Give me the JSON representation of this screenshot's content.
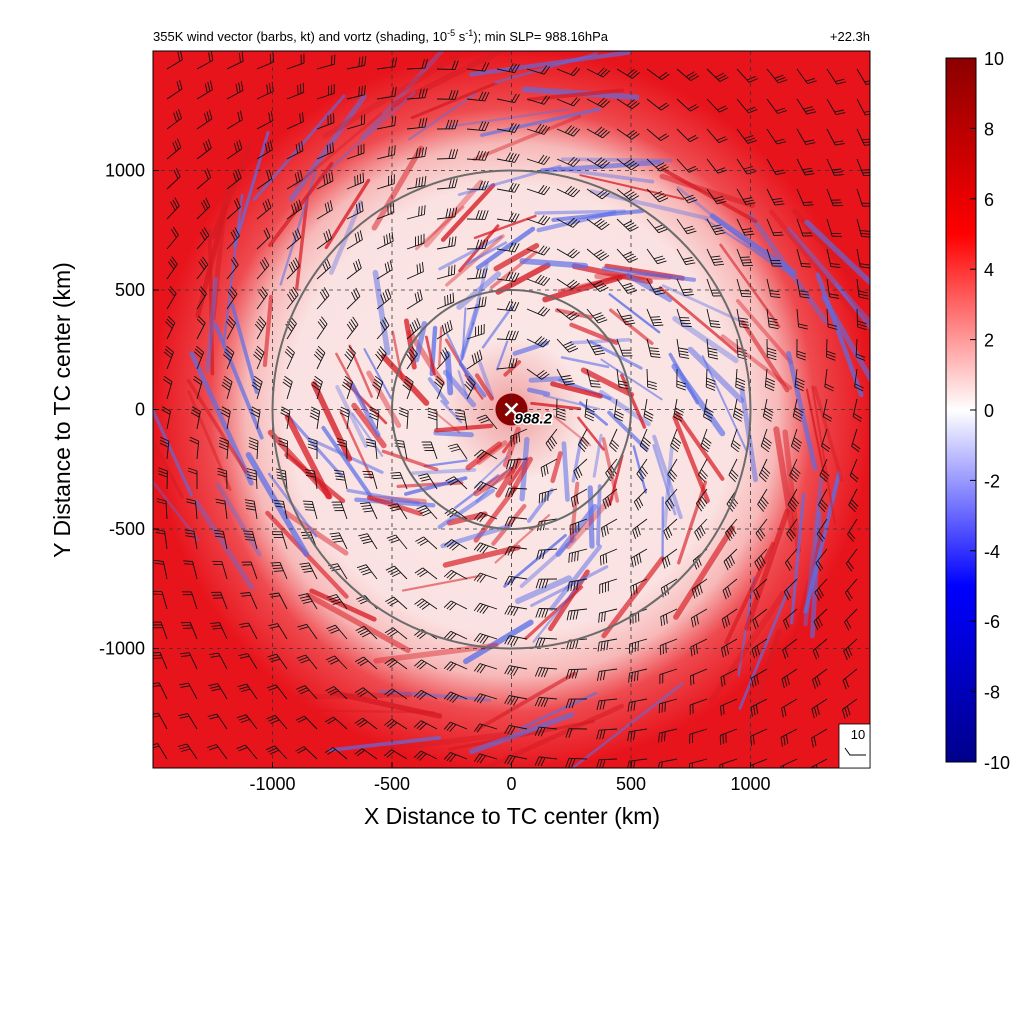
{
  "chart_data": {
    "type": "heatmap",
    "title_main": "355K wind vector (barbs, kt) and vortz (shading, 10",
    "title_exp": "-5",
    "title_mid": " s",
    "title_exp2": "-1",
    "title_tail": "); min SLP= 988.16hPa",
    "time_label": "+22.3h",
    "xlabel": "X Distance to TC center (km)",
    "ylabel": "Y Distance to TC center (km)",
    "xlim": [
      -1500,
      1500
    ],
    "ylim": [
      -1500,
      1500
    ],
    "xticks": [
      -1000,
      -500,
      0,
      500,
      1000
    ],
    "yticks": [
      -1000,
      -500,
      0,
      500,
      1000
    ],
    "xtick_labels": [
      "-1000",
      "-500",
      "0",
      "500",
      "1000"
    ],
    "ytick_labels": [
      "-1000",
      "-500",
      "0",
      "500",
      "1000"
    ],
    "range_rings_km": [
      500,
      1000
    ],
    "center_marker": {
      "x": 0,
      "y": 0,
      "label": "988.2"
    },
    "barb_reference": {
      "label": "10",
      "units": "kt"
    },
    "colorbar": {
      "min": -10,
      "max": 10,
      "ticks": [
        10,
        8,
        6,
        4,
        2,
        0,
        -2,
        -4,
        -6,
        -8,
        -10
      ],
      "tick_labels": [
        "10",
        "8",
        "6",
        "4",
        "2",
        "0",
        "-2",
        "-4",
        "-6",
        "-8",
        "-10"
      ],
      "colors": [
        "#00008b",
        "#0000ff",
        "#ffffff",
        "#ff0000",
        "#8b0000"
      ]
    },
    "field_description_colors": {
      "outer_ring": "#e8141c",
      "inner_disk": "#fbe2e2",
      "core": "#8b0000",
      "negative_streaks": "#5a6ee8",
      "positive_streaks": "#d61a22"
    },
    "grid": true
  }
}
